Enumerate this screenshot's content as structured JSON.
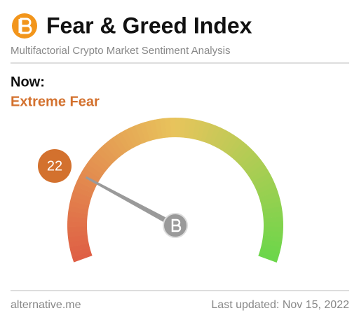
{
  "chart_data": {
    "type": "gauge",
    "title": "Fear & Greed Index",
    "subtitle": "Multifactorial Crypto Market Sentiment Analysis",
    "label": "Now:",
    "classification": "Extreme Fear",
    "value": 22,
    "ylim": [
      0,
      100
    ],
    "colors": [
      "#df5f45",
      "#e8c45c",
      "#6cd64a"
    ],
    "source": "alternative.me",
    "updated": "Last updated: Nov 15, 2022"
  }
}
